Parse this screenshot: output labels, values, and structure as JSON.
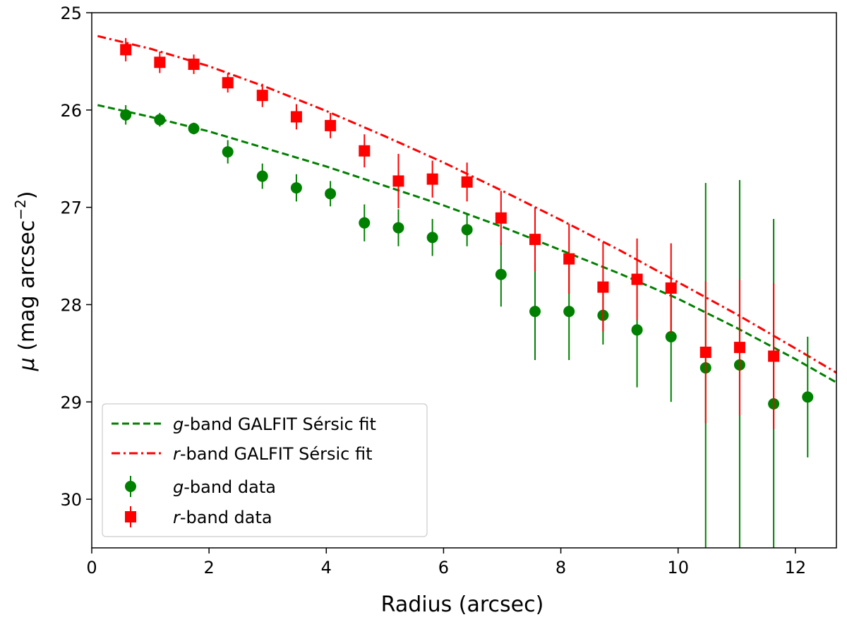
{
  "chart_data": {
    "type": "scatter",
    "xlabel": "Radius (arcsec)",
    "ylabel_symbol": "μ",
    "ylabel_text": " (mag arcsec",
    "ylabel_exp": "−2",
    "ylabel_close": ")",
    "xlim": [
      0,
      12.7
    ],
    "ylim": [
      30.5,
      25
    ],
    "y_inverted": true,
    "grid": false,
    "legend_position": "lower-left",
    "x_ticks": [
      0,
      2,
      4,
      6,
      8,
      10,
      12
    ],
    "x_tick_labels": [
      "0",
      "2",
      "4",
      "6",
      "8",
      "10",
      "12"
    ],
    "y_ticks": [
      25,
      26,
      27,
      28,
      29,
      30
    ],
    "y_tick_labels": [
      "25",
      "26",
      "27",
      "28",
      "29",
      "30"
    ],
    "legend": [
      {
        "key": "g_fit",
        "italic": "g",
        "text": "-band GALFIT Sérsic fit"
      },
      {
        "key": "r_fit",
        "italic": "r",
        "text": "-band GALFIT Sérsic fit"
      },
      {
        "key": "g_data",
        "italic": "g",
        "text": "-band data"
      },
      {
        "key": "r_data",
        "italic": "r",
        "text": "-band data"
      }
    ],
    "series": [
      {
        "name": "g-band data",
        "key": "g_data",
        "marker": "circle",
        "color": "#008000",
        "x": [
          0.58,
          1.16,
          1.74,
          2.32,
          2.91,
          3.49,
          4.07,
          4.65,
          5.23,
          5.81,
          6.4,
          6.98,
          7.56,
          8.14,
          8.72,
          9.3,
          9.88,
          10.47,
          11.05,
          11.63,
          12.21
        ],
        "y": [
          26.05,
          26.1,
          26.19,
          26.43,
          26.68,
          26.8,
          26.86,
          27.16,
          27.21,
          27.31,
          27.23,
          27.69,
          28.07,
          28.07,
          28.11,
          28.26,
          28.33,
          28.65,
          28.62,
          29.02,
          28.95
        ],
        "err": [
          0.1,
          0.07,
          0.06,
          0.12,
          0.13,
          0.14,
          0.13,
          0.19,
          0.19,
          0.19,
          0.17,
          0.33,
          0.5,
          0.5,
          0.3,
          0.59,
          0.67,
          1.9,
          1.9,
          1.9,
          0.62
        ]
      },
      {
        "name": "r-band data",
        "key": "r_data",
        "marker": "square",
        "color": "#ff0000",
        "x": [
          0.58,
          1.16,
          1.74,
          2.32,
          2.91,
          3.49,
          4.07,
          4.65,
          5.23,
          5.81,
          6.4,
          6.98,
          7.56,
          8.14,
          8.72,
          9.3,
          9.88,
          10.47,
          11.05,
          11.63
        ],
        "y": [
          25.38,
          25.51,
          25.53,
          25.72,
          25.85,
          26.07,
          26.16,
          26.42,
          26.73,
          26.71,
          26.74,
          27.11,
          27.33,
          27.53,
          27.82,
          27.74,
          27.83,
          28.49,
          28.44,
          28.53
        ],
        "err": [
          0.12,
          0.11,
          0.1,
          0.1,
          0.12,
          0.13,
          0.13,
          0.17,
          0.28,
          0.19,
          0.2,
          0.28,
          0.33,
          0.36,
          0.46,
          0.42,
          0.46,
          0.73,
          0.7,
          0.75
        ]
      }
    ],
    "fits": [
      {
        "name": "g-band GALFIT Sérsic fit",
        "key": "g_fit",
        "style": "dashed",
        "color": "#008000",
        "x": [
          0.1,
          1,
          2,
          3,
          4,
          5,
          6,
          7,
          8,
          9,
          10,
          11,
          12,
          12.7
        ],
        "y": [
          25.95,
          26.07,
          26.22,
          26.4,
          26.58,
          26.78,
          26.98,
          27.2,
          27.44,
          27.68,
          27.94,
          28.24,
          28.56,
          28.8
        ]
      },
      {
        "name": "r-band GALFIT Sérsic fit",
        "key": "r_fit",
        "style": "dashdot",
        "color": "#ff0000",
        "x": [
          0.1,
          1,
          2,
          3,
          4,
          5,
          6,
          7,
          8,
          9,
          10,
          11,
          12,
          12.7
        ],
        "y": [
          25.24,
          25.37,
          25.55,
          25.77,
          26.01,
          26.27,
          26.54,
          26.83,
          27.13,
          27.44,
          27.77,
          28.1,
          28.45,
          28.7
        ]
      }
    ]
  }
}
